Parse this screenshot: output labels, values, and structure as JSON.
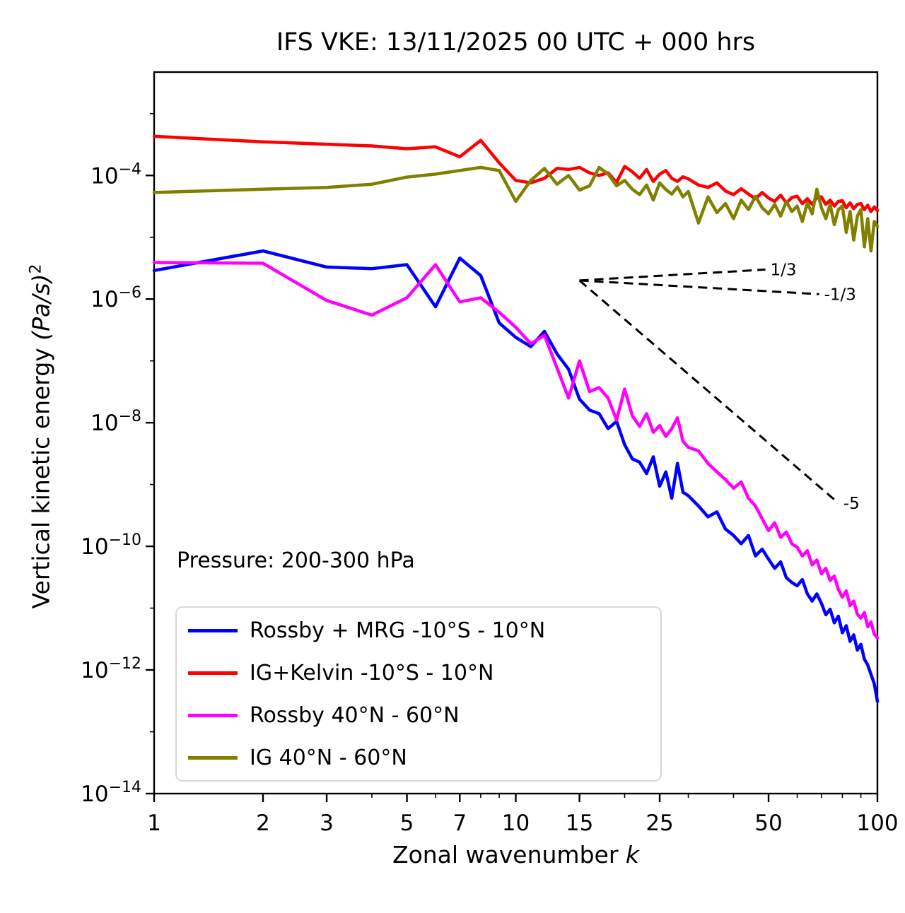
{
  "title": "IFS VKE: 13/11/2025 00 UTC + 000 hrs",
  "annotation": "Pressure: 200-300 hPa",
  "axes": {
    "xlabel_prefix": "Zonal wavenumber ",
    "xlabel_math": "k",
    "ylabel_prefix": "Vertical kinetic energy ",
    "ylabel_math": "(Pa/s)",
    "ylabel_sup": "2"
  },
  "chart_data": {
    "type": "line",
    "title": "IFS VKE: 13/11/2025 00 UTC + 000 hrs",
    "xlabel": "Zonal wavenumber k",
    "ylabel": "Vertical kinetic energy (Pa/s)^2",
    "xscale": "log",
    "yscale": "log",
    "xlim": [
      1,
      100
    ],
    "ylim": [
      1e-14,
      0.0047
    ],
    "grid": false,
    "legend_position": "lower left",
    "xticks": [
      1,
      2,
      3,
      5,
      7,
      10,
      15,
      25,
      50,
      100
    ],
    "xticks_minor": [
      4,
      6,
      8,
      9,
      20,
      30,
      40,
      60,
      70,
      80,
      90
    ],
    "ytick_exponents": [
      -4,
      -6,
      -8,
      -10,
      -12,
      -14
    ],
    "ytick_minor_exponents": [
      -3,
      -5,
      -7,
      -9,
      -11,
      -13
    ],
    "x": [
      1,
      2,
      3,
      4,
      5,
      6,
      7,
      8,
      9,
      10,
      11,
      12,
      13,
      14,
      15,
      16,
      17,
      18,
      19,
      20,
      21,
      22,
      23,
      24,
      25,
      26,
      27,
      28,
      29,
      30,
      32,
      34,
      36,
      38,
      40,
      42,
      44,
      46,
      48,
      50,
      52,
      54,
      56,
      58,
      60,
      62,
      64,
      66,
      68,
      70,
      72,
      74,
      76,
      78,
      80,
      82,
      84,
      86,
      88,
      90,
      92,
      94,
      96,
      98,
      100
    ],
    "series": [
      {
        "name": "rossby-mrg-tropics",
        "label": "Rossby + MRG -10°S - 10°N",
        "color": "#0000ff",
        "values": [
          2.9e-06,
          6e-06,
          3.3e-06,
          3.1e-06,
          3.6e-06,
          7.5e-07,
          4.6e-06,
          2.4e-06,
          4.1e-07,
          2.4e-07,
          1.7e-07,
          3e-07,
          1.3e-07,
          7.3e-08,
          2.4e-08,
          1.6e-08,
          1.4e-08,
          8e-09,
          1.05e-08,
          4.4e-09,
          2.6e-09,
          2.3e-09,
          1.5e-09,
          2.8e-09,
          9.4e-10,
          1.6e-09,
          6e-10,
          2.2e-09,
          7.5e-10,
          6.6e-10,
          4.5e-10,
          3e-10,
          3.6e-10,
          1.9e-10,
          1.5e-10,
          1.1e-10,
          1.5e-10,
          7e-11,
          9e-11,
          6.2e-11,
          4.4e-11,
          5.6e-11,
          3.1e-11,
          2.6e-11,
          2.3e-11,
          2.9e-11,
          1.7e-11,
          1.3e-11,
          1.7e-11,
          1.2e-11,
          7.8e-12,
          9.6e-12,
          5.8e-12,
          7.4e-12,
          4e-12,
          5.2e-12,
          2.9e-12,
          3.7e-12,
          2.1e-12,
          2.6e-12,
          1.5e-12,
          1.2e-12,
          8.5e-13,
          6e-13,
          3.1e-13
        ]
      },
      {
        "name": "ig-kelvin-tropics",
        "label": "IG+Kelvin -10°S - 10°N",
        "color": "#ff0000",
        "values": [
          0.00043,
          0.00035,
          0.00032,
          0.0003,
          0.00027,
          0.00029,
          0.0002,
          0.00037,
          0.00016,
          8.3e-05,
          7.6e-05,
          9e-05,
          0.00013,
          0.000125,
          0.000135,
          0.00011,
          0.0001,
          0.00011,
          7.7e-05,
          0.00014,
          0.000115,
          9e-05,
          0.000125,
          8e-05,
          0.000105,
          0.00012,
          9e-05,
          8e-05,
          9.5e-05,
          8.8e-05,
          7e-05,
          6.4e-05,
          7.6e-05,
          5.6e-05,
          4.9e-05,
          6.1e-05,
          5e-05,
          4.2e-05,
          5.3e-05,
          4.3e-05,
          3.8e-05,
          4.8e-05,
          3.6e-05,
          4.4e-05,
          4.6e-05,
          3.5e-05,
          4.2e-05,
          3.4e-05,
          4.4e-05,
          4.5e-05,
          3.4e-05,
          4e-05,
          3.2e-05,
          3.8e-05,
          3.9e-05,
          3e-05,
          3.6e-05,
          2.9e-05,
          3.4e-05,
          3.5e-05,
          2.8e-05,
          3.3e-05,
          2.6e-05,
          3.1e-05,
          2.7e-05
        ]
      },
      {
        "name": "rossby-midlat",
        "label": "Rossby 40°N - 60°N",
        "color": "#ff00ff",
        "values": [
          3.9e-06,
          3.8e-06,
          9.5e-07,
          5.5e-07,
          1.05e-06,
          3.6e-06,
          9e-07,
          1.05e-06,
          6.1e-07,
          3.5e-07,
          1.9e-07,
          2.6e-07,
          7.7e-08,
          2.5e-08,
          1e-07,
          3.2e-08,
          3.7e-08,
          2.5e-08,
          1.1e-08,
          3.5e-08,
          1.3e-08,
          8.7e-09,
          1.4e-08,
          7e-09,
          9e-09,
          6e-09,
          8e-09,
          1.2e-08,
          5e-09,
          4e-09,
          3.5e-09,
          2.2e-09,
          1.6e-09,
          1.2e-09,
          8.7e-10,
          1.1e-09,
          6e-10,
          4.5e-10,
          2.8e-10,
          1.8e-10,
          2.4e-10,
          1.4e-10,
          1.7e-10,
          1.1e-10,
          9.7e-11,
          7e-11,
          8.5e-11,
          5e-11,
          6e-11,
          3.6e-11,
          4.4e-11,
          2.8e-11,
          3.3e-11,
          2e-11,
          1.5e-11,
          1.9e-11,
          1.1e-11,
          1.3e-11,
          8e-12,
          6.9e-12,
          8.5e-12,
          5e-12,
          6e-12,
          3.8e-12,
          3.3e-12
        ]
      },
      {
        "name": "ig-midlat",
        "label": "IG 40°N - 60°N",
        "color": "#808000",
        "values": [
          5.3e-05,
          6e-05,
          6.4e-05,
          7.2e-05,
          9.4e-05,
          0.000105,
          0.00012,
          0.000135,
          0.00012,
          3.8e-05,
          8.3e-05,
          0.00013,
          7.2e-05,
          0.0001,
          5.8e-05,
          6.8e-05,
          0.000135,
          0.000105,
          6.8e-05,
          8.3e-05,
          6e-05,
          4.9e-05,
          7e-05,
          4e-05,
          7.6e-05,
          5.9e-05,
          5e-05,
          6.5e-05,
          4.5e-05,
          5.5e-05,
          1.7e-05,
          4.5e-05,
          2.5e-05,
          3.5e-05,
          2e-05,
          4e-05,
          2.8e-05,
          4.6e-05,
          3e-05,
          2.4e-05,
          3.4e-05,
          2.2e-05,
          3.8e-05,
          2.6e-05,
          3.2e-05,
          1.8e-05,
          3.6e-05,
          2.4e-05,
          6e-05,
          3e-05,
          2e-05,
          3.4e-05,
          1.6e-05,
          2.8e-05,
          3.2e-05,
          1.2e-05,
          2.6e-05,
          9e-06,
          2.2e-05,
          2.8e-05,
          7e-06,
          2e-05,
          6e-06,
          1.8e-05,
          1.5e-05
        ]
      }
    ],
    "reference_lines": [
      {
        "label": "1/3",
        "x1": 15,
        "y1": 2e-06,
        "x2": 49,
        "y2": 3e-06
      },
      {
        "label": "-1/3",
        "x1": 15,
        "y1": 2e-06,
        "x2": 69,
        "y2": 1.2e-06
      },
      {
        "label": "-5",
        "x1": 15,
        "y1": 2e-06,
        "x2": 78,
        "y2": 5e-10
      }
    ]
  }
}
